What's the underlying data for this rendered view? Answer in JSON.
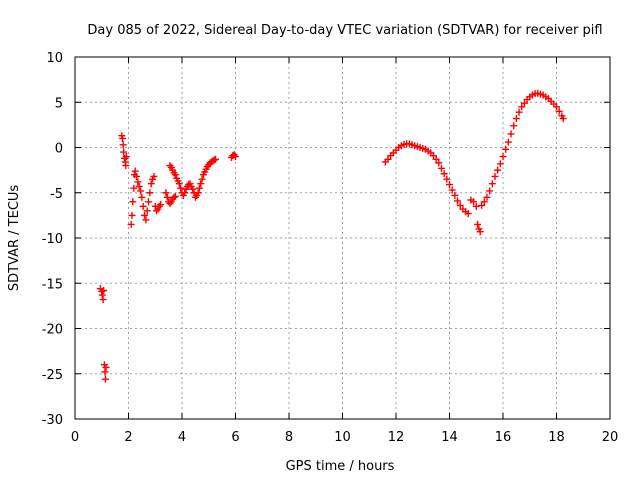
{
  "chart_data": {
    "type": "scatter",
    "title": "Day 085 of 2022, Sidereal Day-to-day VTEC variation (SDTVAR) for receiver pifl",
    "xlabel": "GPS time / hours",
    "ylabel": "SDTVAR / TECUs",
    "xlim": [
      0,
      20
    ],
    "ylim": [
      -30,
      10
    ],
    "xticks": [
      0,
      2,
      4,
      6,
      8,
      10,
      12,
      14,
      16,
      18,
      20
    ],
    "yticks": [
      -30,
      -25,
      -20,
      -15,
      -10,
      -5,
      0,
      5,
      10
    ],
    "grid": true,
    "marker": "plus",
    "colors": {
      "series": "#ff0000",
      "grid": "#a0a0a0",
      "axis": "#000000"
    },
    "series": [
      {
        "name": "SDTVAR",
        "points": [
          [
            0.95,
            -15.6
          ],
          [
            1.0,
            -15.9
          ],
          [
            1.02,
            -16.3
          ],
          [
            1.05,
            -16.8
          ],
          [
            1.07,
            -15.8
          ],
          [
            1.1,
            -24.0
          ],
          [
            1.12,
            -24.8
          ],
          [
            1.14,
            -25.6
          ],
          [
            1.16,
            -24.3
          ],
          [
            1.75,
            1.3
          ],
          [
            1.78,
            1.0
          ],
          [
            1.8,
            0.3
          ],
          [
            1.82,
            -0.5
          ],
          [
            1.85,
            -1.2
          ],
          [
            1.88,
            -1.6
          ],
          [
            1.9,
            -2.0
          ],
          [
            1.92,
            -1.0
          ],
          [
            2.1,
            -8.5
          ],
          [
            2.13,
            -7.5
          ],
          [
            2.16,
            -6.0
          ],
          [
            2.2,
            -4.5
          ],
          [
            2.22,
            -3.0
          ],
          [
            2.25,
            -2.6
          ],
          [
            2.3,
            -3.2
          ],
          [
            2.35,
            -3.8
          ],
          [
            2.4,
            -4.3
          ],
          [
            2.45,
            -4.8
          ],
          [
            2.5,
            -5.5
          ],
          [
            2.55,
            -6.5
          ],
          [
            2.6,
            -7.5
          ],
          [
            2.65,
            -8.0
          ],
          [
            2.7,
            -7.0
          ],
          [
            2.75,
            -6.0
          ],
          [
            2.8,
            -5.0
          ],
          [
            2.85,
            -4.0
          ],
          [
            2.9,
            -3.5
          ],
          [
            2.95,
            -3.2
          ],
          [
            3.0,
            -6.5
          ],
          [
            3.05,
            -7.0
          ],
          [
            3.1,
            -6.8
          ],
          [
            3.15,
            -6.5
          ],
          [
            3.2,
            -6.3
          ],
          [
            3.4,
            -5.0
          ],
          [
            3.45,
            -5.5
          ],
          [
            3.5,
            -6.0
          ],
          [
            3.55,
            -6.2
          ],
          [
            3.6,
            -6.0
          ],
          [
            3.65,
            -5.7
          ],
          [
            3.7,
            -5.5
          ],
          [
            3.75,
            -5.4
          ],
          [
            3.55,
            -2.0
          ],
          [
            3.6,
            -2.2
          ],
          [
            3.65,
            -2.5
          ],
          [
            3.7,
            -2.8
          ],
          [
            3.75,
            -3.0
          ],
          [
            3.8,
            -3.4
          ],
          [
            3.85,
            -3.7
          ],
          [
            3.9,
            -4.0
          ],
          [
            3.95,
            -4.5
          ],
          [
            4.0,
            -5.0
          ],
          [
            4.05,
            -5.3
          ],
          [
            4.1,
            -5.0
          ],
          [
            4.15,
            -4.6
          ],
          [
            4.2,
            -4.3
          ],
          [
            4.25,
            -4.1
          ],
          [
            4.3,
            -4.0
          ],
          [
            4.35,
            -4.3
          ],
          [
            4.4,
            -4.6
          ],
          [
            4.45,
            -5.0
          ],
          [
            4.5,
            -5.5
          ],
          [
            4.55,
            -5.3
          ],
          [
            4.6,
            -5.0
          ],
          [
            4.65,
            -4.5
          ],
          [
            4.7,
            -4.0
          ],
          [
            4.75,
            -3.5
          ],
          [
            4.8,
            -3.0
          ],
          [
            4.85,
            -2.7
          ],
          [
            4.9,
            -2.4
          ],
          [
            4.95,
            -2.1
          ],
          [
            5.0,
            -1.9
          ],
          [
            5.05,
            -1.7
          ],
          [
            5.1,
            -1.6
          ],
          [
            5.15,
            -1.5
          ],
          [
            5.2,
            -1.4
          ],
          [
            5.25,
            -1.3
          ],
          [
            5.85,
            -1.1
          ],
          [
            5.9,
            -0.9
          ],
          [
            5.95,
            -0.8
          ],
          [
            6.0,
            -1.0
          ],
          [
            11.6,
            -1.6
          ],
          [
            11.7,
            -1.3
          ],
          [
            11.8,
            -0.9
          ],
          [
            11.9,
            -0.6
          ],
          [
            12.0,
            -0.3
          ],
          [
            12.1,
            0.0
          ],
          [
            12.2,
            0.2
          ],
          [
            12.3,
            0.35
          ],
          [
            12.4,
            0.4
          ],
          [
            12.5,
            0.4
          ],
          [
            12.6,
            0.3
          ],
          [
            12.7,
            0.2
          ],
          [
            12.8,
            0.1
          ],
          [
            12.9,
            0.0
          ],
          [
            13.0,
            -0.1
          ],
          [
            13.1,
            -0.2
          ],
          [
            13.2,
            -0.4
          ],
          [
            13.3,
            -0.6
          ],
          [
            13.4,
            -0.9
          ],
          [
            13.5,
            -1.3
          ],
          [
            13.6,
            -1.7
          ],
          [
            13.7,
            -2.3
          ],
          [
            13.8,
            -2.9
          ],
          [
            13.9,
            -3.5
          ],
          [
            14.0,
            -4.1
          ],
          [
            14.1,
            -4.7
          ],
          [
            14.2,
            -5.3
          ],
          [
            14.3,
            -5.9
          ],
          [
            14.4,
            -6.4
          ],
          [
            14.5,
            -6.8
          ],
          [
            14.6,
            -7.1
          ],
          [
            14.7,
            -7.3
          ],
          [
            14.8,
            -5.8
          ],
          [
            14.9,
            -6.0
          ],
          [
            15.0,
            -6.5
          ],
          [
            15.05,
            -8.5
          ],
          [
            15.1,
            -9.0
          ],
          [
            15.15,
            -9.3
          ],
          [
            15.2,
            -6.4
          ],
          [
            15.3,
            -6.0
          ],
          [
            15.4,
            -5.5
          ],
          [
            15.5,
            -4.8
          ],
          [
            15.6,
            -4.0
          ],
          [
            15.7,
            -3.2
          ],
          [
            15.8,
            -2.5
          ],
          [
            15.9,
            -1.8
          ],
          [
            16.0,
            -1.0
          ],
          [
            16.1,
            -0.2
          ],
          [
            16.2,
            0.6
          ],
          [
            16.3,
            1.5
          ],
          [
            16.4,
            2.4
          ],
          [
            16.5,
            3.2
          ],
          [
            16.6,
            3.9
          ],
          [
            16.7,
            4.5
          ],
          [
            16.8,
            4.9
          ],
          [
            16.9,
            5.3
          ],
          [
            17.0,
            5.6
          ],
          [
            17.1,
            5.8
          ],
          [
            17.2,
            5.95
          ],
          [
            17.3,
            6.0
          ],
          [
            17.4,
            5.9
          ],
          [
            17.5,
            5.8
          ],
          [
            17.6,
            5.6
          ],
          [
            17.7,
            5.4
          ],
          [
            17.8,
            5.1
          ],
          [
            17.9,
            4.8
          ],
          [
            18.0,
            4.5
          ],
          [
            18.1,
            4.0
          ],
          [
            18.2,
            3.5
          ],
          [
            18.25,
            3.2
          ]
        ]
      }
    ]
  }
}
